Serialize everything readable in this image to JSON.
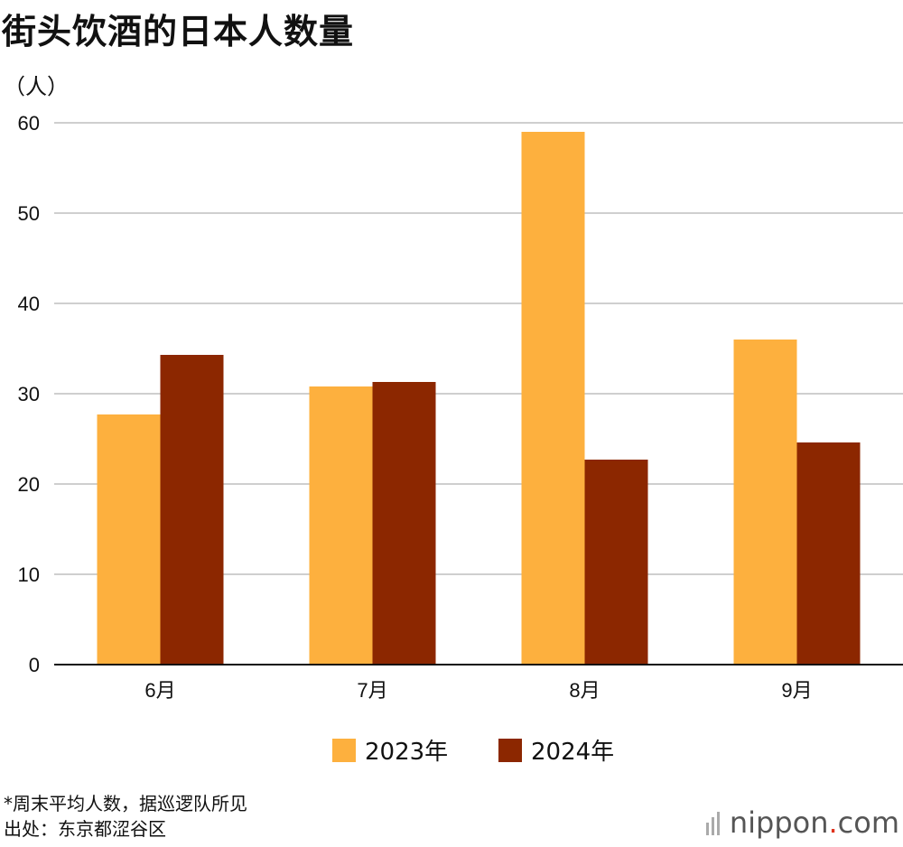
{
  "title": "街头饮酒的日本人数量",
  "unit_label": "（人）",
  "chart_data": {
    "type": "bar",
    "title": "街头饮酒的日本人数量",
    "ylabel": "（人）",
    "xlabel": "",
    "categories": [
      "6月",
      "7月",
      "8月",
      "9月"
    ],
    "series": [
      {
        "name": "2023年",
        "values": [
          27.7,
          30.8,
          59.0,
          36.0
        ],
        "color": "#FDB03E"
      },
      {
        "name": "2024年",
        "values": [
          34.3,
          31.3,
          22.7,
          24.6
        ],
        "color": "#8C2700"
      }
    ],
    "ylim": [
      0,
      60
    ],
    "yticks": [
      0,
      10,
      20,
      30,
      40,
      50,
      60
    ],
    "grid": true,
    "legend": "bottom-center"
  },
  "legend": {
    "items": [
      {
        "label": "2023年",
        "color": "#FDB03E"
      },
      {
        "label": "2024年",
        "color": "#8C2700"
      }
    ]
  },
  "notes": {
    "line1": "*周末平均人数，据巡逻队所见",
    "line2": "出处：东京都涩谷区"
  },
  "brand": {
    "name": "nippon",
    "dot": ".",
    "suffix": "com",
    "accent": "#e0321c"
  }
}
